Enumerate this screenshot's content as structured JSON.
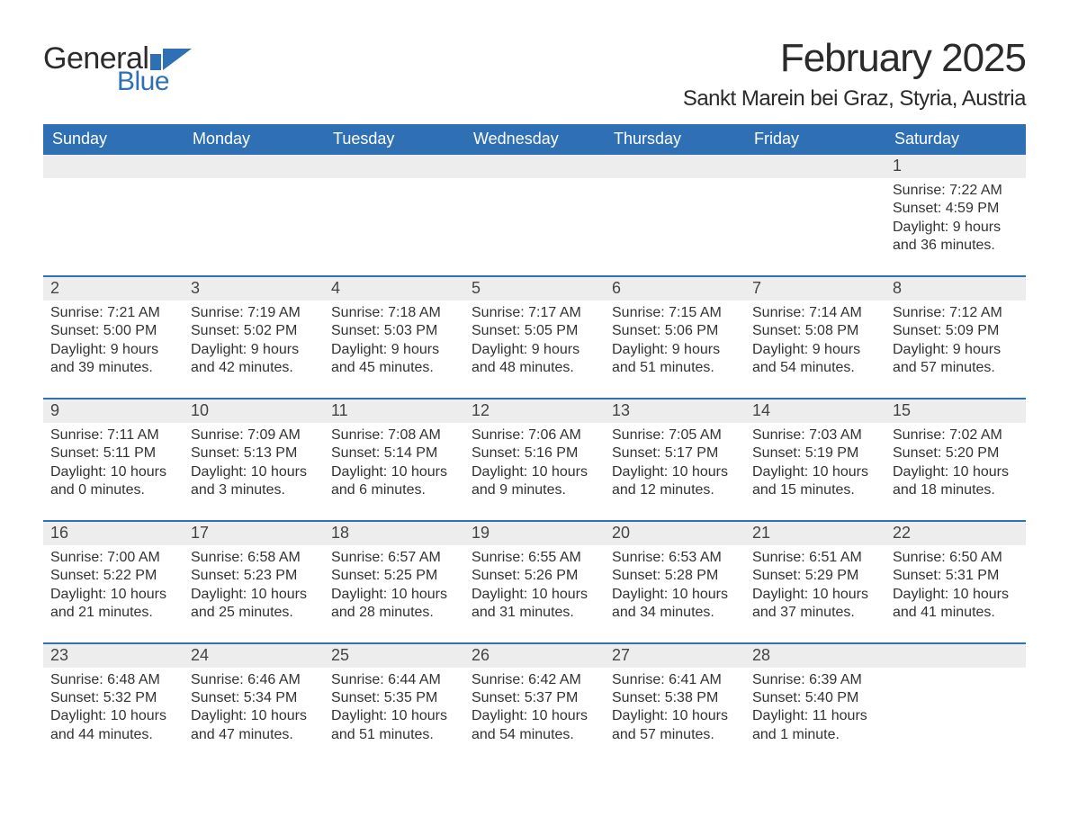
{
  "brand": {
    "word1": "General",
    "word2": "Blue",
    "flag_color": "#2f6fb4"
  },
  "title": "February 2025",
  "location": "Sankt Marein bei Graz, Styria, Austria",
  "colors": {
    "header_bg": "#2f6fb4",
    "header_text": "#ffffff",
    "row_divider": "#2f6fb4",
    "daynum_bg": "#ededed",
    "body_text": "#333333",
    "page_bg": "#ffffff"
  },
  "weekdays": [
    "Sunday",
    "Monday",
    "Tuesday",
    "Wednesday",
    "Thursday",
    "Friday",
    "Saturday"
  ],
  "weeks": [
    [
      null,
      null,
      null,
      null,
      null,
      null,
      {
        "n": "1",
        "sunrise": "Sunrise: 7:22 AM",
        "sunset": "Sunset: 4:59 PM",
        "daylight": "Daylight: 9 hours and 36 minutes."
      }
    ],
    [
      {
        "n": "2",
        "sunrise": "Sunrise: 7:21 AM",
        "sunset": "Sunset: 5:00 PM",
        "daylight": "Daylight: 9 hours and 39 minutes."
      },
      {
        "n": "3",
        "sunrise": "Sunrise: 7:19 AM",
        "sunset": "Sunset: 5:02 PM",
        "daylight": "Daylight: 9 hours and 42 minutes."
      },
      {
        "n": "4",
        "sunrise": "Sunrise: 7:18 AM",
        "sunset": "Sunset: 5:03 PM",
        "daylight": "Daylight: 9 hours and 45 minutes."
      },
      {
        "n": "5",
        "sunrise": "Sunrise: 7:17 AM",
        "sunset": "Sunset: 5:05 PM",
        "daylight": "Daylight: 9 hours and 48 minutes."
      },
      {
        "n": "6",
        "sunrise": "Sunrise: 7:15 AM",
        "sunset": "Sunset: 5:06 PM",
        "daylight": "Daylight: 9 hours and 51 minutes."
      },
      {
        "n": "7",
        "sunrise": "Sunrise: 7:14 AM",
        "sunset": "Sunset: 5:08 PM",
        "daylight": "Daylight: 9 hours and 54 minutes."
      },
      {
        "n": "8",
        "sunrise": "Sunrise: 7:12 AM",
        "sunset": "Sunset: 5:09 PM",
        "daylight": "Daylight: 9 hours and 57 minutes."
      }
    ],
    [
      {
        "n": "9",
        "sunrise": "Sunrise: 7:11 AM",
        "sunset": "Sunset: 5:11 PM",
        "daylight": "Daylight: 10 hours and 0 minutes."
      },
      {
        "n": "10",
        "sunrise": "Sunrise: 7:09 AM",
        "sunset": "Sunset: 5:13 PM",
        "daylight": "Daylight: 10 hours and 3 minutes."
      },
      {
        "n": "11",
        "sunrise": "Sunrise: 7:08 AM",
        "sunset": "Sunset: 5:14 PM",
        "daylight": "Daylight: 10 hours and 6 minutes."
      },
      {
        "n": "12",
        "sunrise": "Sunrise: 7:06 AM",
        "sunset": "Sunset: 5:16 PM",
        "daylight": "Daylight: 10 hours and 9 minutes."
      },
      {
        "n": "13",
        "sunrise": "Sunrise: 7:05 AM",
        "sunset": "Sunset: 5:17 PM",
        "daylight": "Daylight: 10 hours and 12 minutes."
      },
      {
        "n": "14",
        "sunrise": "Sunrise: 7:03 AM",
        "sunset": "Sunset: 5:19 PM",
        "daylight": "Daylight: 10 hours and 15 minutes."
      },
      {
        "n": "15",
        "sunrise": "Sunrise: 7:02 AM",
        "sunset": "Sunset: 5:20 PM",
        "daylight": "Daylight: 10 hours and 18 minutes."
      }
    ],
    [
      {
        "n": "16",
        "sunrise": "Sunrise: 7:00 AM",
        "sunset": "Sunset: 5:22 PM",
        "daylight": "Daylight: 10 hours and 21 minutes."
      },
      {
        "n": "17",
        "sunrise": "Sunrise: 6:58 AM",
        "sunset": "Sunset: 5:23 PM",
        "daylight": "Daylight: 10 hours and 25 minutes."
      },
      {
        "n": "18",
        "sunrise": "Sunrise: 6:57 AM",
        "sunset": "Sunset: 5:25 PM",
        "daylight": "Daylight: 10 hours and 28 minutes."
      },
      {
        "n": "19",
        "sunrise": "Sunrise: 6:55 AM",
        "sunset": "Sunset: 5:26 PM",
        "daylight": "Daylight: 10 hours and 31 minutes."
      },
      {
        "n": "20",
        "sunrise": "Sunrise: 6:53 AM",
        "sunset": "Sunset: 5:28 PM",
        "daylight": "Daylight: 10 hours and 34 minutes."
      },
      {
        "n": "21",
        "sunrise": "Sunrise: 6:51 AM",
        "sunset": "Sunset: 5:29 PM",
        "daylight": "Daylight: 10 hours and 37 minutes."
      },
      {
        "n": "22",
        "sunrise": "Sunrise: 6:50 AM",
        "sunset": "Sunset: 5:31 PM",
        "daylight": "Daylight: 10 hours and 41 minutes."
      }
    ],
    [
      {
        "n": "23",
        "sunrise": "Sunrise: 6:48 AM",
        "sunset": "Sunset: 5:32 PM",
        "daylight": "Daylight: 10 hours and 44 minutes."
      },
      {
        "n": "24",
        "sunrise": "Sunrise: 6:46 AM",
        "sunset": "Sunset: 5:34 PM",
        "daylight": "Daylight: 10 hours and 47 minutes."
      },
      {
        "n": "25",
        "sunrise": "Sunrise: 6:44 AM",
        "sunset": "Sunset: 5:35 PM",
        "daylight": "Daylight: 10 hours and 51 minutes."
      },
      {
        "n": "26",
        "sunrise": "Sunrise: 6:42 AM",
        "sunset": "Sunset: 5:37 PM",
        "daylight": "Daylight: 10 hours and 54 minutes."
      },
      {
        "n": "27",
        "sunrise": "Sunrise: 6:41 AM",
        "sunset": "Sunset: 5:38 PM",
        "daylight": "Daylight: 10 hours and 57 minutes."
      },
      {
        "n": "28",
        "sunrise": "Sunrise: 6:39 AM",
        "sunset": "Sunset: 5:40 PM",
        "daylight": "Daylight: 11 hours and 1 minute."
      },
      null
    ]
  ]
}
